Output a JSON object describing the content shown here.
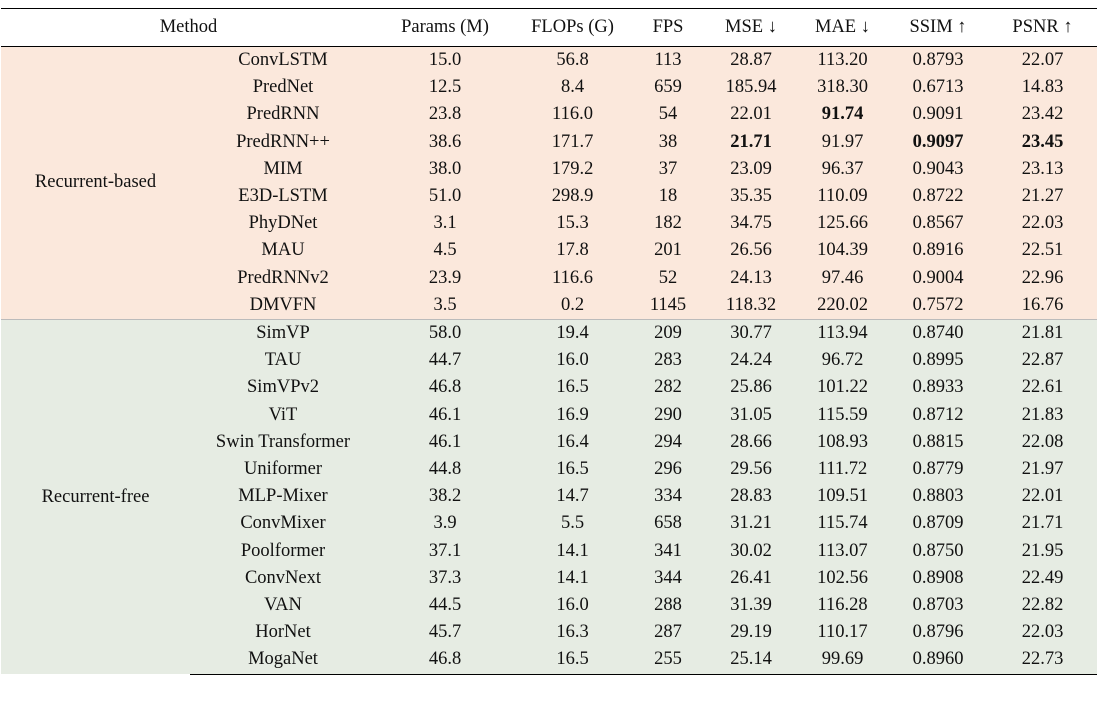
{
  "columns": [
    "Method",
    "Params (M)",
    "FLOPs (G)",
    "FPS",
    "MSE ↓",
    "MAE ↓",
    "SSIM ↑",
    "PSNR ↑"
  ],
  "groups": [
    {
      "name": "Recurrent-based",
      "color": "#fbe8dc",
      "rows": [
        {
          "method": "ConvLSTM",
          "params": "15.0",
          "flops": "56.8",
          "fps": "113",
          "mse": "28.87",
          "mae": "113.20",
          "ssim": "0.8793",
          "psnr": "22.07",
          "bold": []
        },
        {
          "method": "PredNet",
          "params": "12.5",
          "flops": "8.4",
          "fps": "659",
          "mse": "185.94",
          "mae": "318.30",
          "ssim": "0.6713",
          "psnr": "14.83",
          "bold": []
        },
        {
          "method": "PredRNN",
          "params": "23.8",
          "flops": "116.0",
          "fps": "54",
          "mse": "22.01",
          "mae": "91.74",
          "ssim": "0.9091",
          "psnr": "23.42",
          "bold": [
            "mae"
          ]
        },
        {
          "method": "PredRNN++",
          "params": "38.6",
          "flops": "171.7",
          "fps": "38",
          "mse": "21.71",
          "mae": "91.97",
          "ssim": "0.9097",
          "psnr": "23.45",
          "bold": [
            "mse",
            "ssim",
            "psnr"
          ]
        },
        {
          "method": "MIM",
          "params": "38.0",
          "flops": "179.2",
          "fps": "37",
          "mse": "23.09",
          "mae": "96.37",
          "ssim": "0.9043",
          "psnr": "23.13",
          "bold": []
        },
        {
          "method": "E3D-LSTM",
          "params": "51.0",
          "flops": "298.9",
          "fps": "18",
          "mse": "35.35",
          "mae": "110.09",
          "ssim": "0.8722",
          "psnr": "21.27",
          "bold": []
        },
        {
          "method": "PhyDNet",
          "params": "3.1",
          "flops": "15.3",
          "fps": "182",
          "mse": "34.75",
          "mae": "125.66",
          "ssim": "0.8567",
          "psnr": "22.03",
          "bold": []
        },
        {
          "method": "MAU",
          "params": "4.5",
          "flops": "17.8",
          "fps": "201",
          "mse": "26.56",
          "mae": "104.39",
          "ssim": "0.8916",
          "psnr": "22.51",
          "bold": []
        },
        {
          "method": "PredRNNv2",
          "params": "23.9",
          "flops": "116.6",
          "fps": "52",
          "mse": "24.13",
          "mae": "97.46",
          "ssim": "0.9004",
          "psnr": "22.96",
          "bold": []
        },
        {
          "method": "DMVFN",
          "params": "3.5",
          "flops": "0.2",
          "fps": "1145",
          "mse": "118.32",
          "mae": "220.02",
          "ssim": "0.7572",
          "psnr": "16.76",
          "bold": []
        }
      ]
    },
    {
      "name": "Recurrent-free",
      "color": "#e6ece3",
      "rows": [
        {
          "method": "SimVP",
          "params": "58.0",
          "flops": "19.4",
          "fps": "209",
          "mse": "30.77",
          "mae": "113.94",
          "ssim": "0.8740",
          "psnr": "21.81",
          "bold": []
        },
        {
          "method": "TAU",
          "params": "44.7",
          "flops": "16.0",
          "fps": "283",
          "mse": "24.24",
          "mae": "96.72",
          "ssim": "0.8995",
          "psnr": "22.87",
          "bold": []
        },
        {
          "method": "SimVPv2",
          "params": "46.8",
          "flops": "16.5",
          "fps": "282",
          "mse": "25.86",
          "mae": "101.22",
          "ssim": "0.8933",
          "psnr": "22.61",
          "bold": []
        },
        {
          "method": "ViT",
          "params": "46.1",
          "flops": "16.9",
          "fps": "290",
          "mse": "31.05",
          "mae": "115.59",
          "ssim": "0.8712",
          "psnr": "21.83",
          "bold": []
        },
        {
          "method": "Swin Transformer",
          "params": "46.1",
          "flops": "16.4",
          "fps": "294",
          "mse": "28.66",
          "mae": "108.93",
          "ssim": "0.8815",
          "psnr": "22.08",
          "bold": []
        },
        {
          "method": "Uniformer",
          "params": "44.8",
          "flops": "16.5",
          "fps": "296",
          "mse": "29.56",
          "mae": "111.72",
          "ssim": "0.8779",
          "psnr": "21.97",
          "bold": []
        },
        {
          "method": "MLP-Mixer",
          "params": "38.2",
          "flops": "14.7",
          "fps": "334",
          "mse": "28.83",
          "mae": "109.51",
          "ssim": "0.8803",
          "psnr": "22.01",
          "bold": []
        },
        {
          "method": "ConvMixer",
          "params": "3.9",
          "flops": "5.5",
          "fps": "658",
          "mse": "31.21",
          "mae": "115.74",
          "ssim": "0.8709",
          "psnr": "21.71",
          "bold": []
        },
        {
          "method": "Poolformer",
          "params": "37.1",
          "flops": "14.1",
          "fps": "341",
          "mse": "30.02",
          "mae": "113.07",
          "ssim": "0.8750",
          "psnr": "21.95",
          "bold": []
        },
        {
          "method": "ConvNext",
          "params": "37.3",
          "flops": "14.1",
          "fps": "344",
          "mse": "26.41",
          "mae": "102.56",
          "ssim": "0.8908",
          "psnr": "22.49",
          "bold": []
        },
        {
          "method": "VAN",
          "params": "44.5",
          "flops": "16.0",
          "fps": "288",
          "mse": "31.39",
          "mae": "116.28",
          "ssim": "0.8703",
          "psnr": "22.82",
          "bold": []
        },
        {
          "method": "HorNet",
          "params": "45.7",
          "flops": "16.3",
          "fps": "287",
          "mse": "29.19",
          "mae": "110.17",
          "ssim": "0.8796",
          "psnr": "22.03",
          "bold": []
        },
        {
          "method": "MogaNet",
          "params": "46.8",
          "flops": "16.5",
          "fps": "255",
          "mse": "25.14",
          "mae": "99.69",
          "ssim": "0.8960",
          "psnr": "22.73",
          "bold": []
        }
      ]
    }
  ]
}
